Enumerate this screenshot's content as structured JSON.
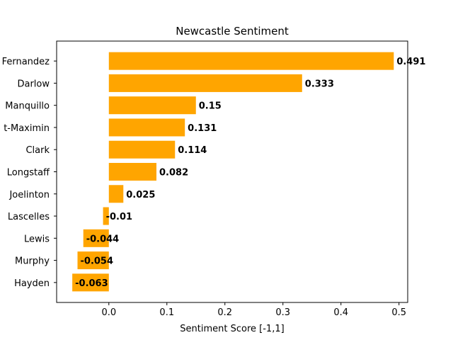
{
  "chart_data": {
    "type": "bar",
    "orientation": "horizontal",
    "title": "Newcastle Sentiment",
    "xlabel": "Sentiment Score [-1,1]",
    "ylabel": "",
    "xlim": [
      -0.09,
      0.515
    ],
    "xticks": [
      0.0,
      0.1,
      0.2,
      0.3,
      0.4,
      0.5
    ],
    "xtick_labels": [
      "0.0",
      "0.1",
      "0.2",
      "0.3",
      "0.4",
      "0.5"
    ],
    "grid": false,
    "bar_color": "#FFA500",
    "categories": [
      "Fernandez",
      "Darlow",
      "Manquillo",
      "t-Maximin",
      "Clark",
      "Longstaff",
      "Joelinton",
      "Lascelles",
      "Lewis",
      "Murphy",
      "Hayden"
    ],
    "values": [
      0.491,
      0.333,
      0.15,
      0.131,
      0.114,
      0.082,
      0.025,
      -0.01,
      -0.044,
      -0.054,
      -0.063
    ],
    "value_labels": [
      "0.491",
      "0.333",
      "0.15",
      "0.131",
      "0.114",
      "0.082",
      "0.025",
      "-0.01",
      "-0.044",
      "-0.054",
      "-0.063"
    ]
  }
}
